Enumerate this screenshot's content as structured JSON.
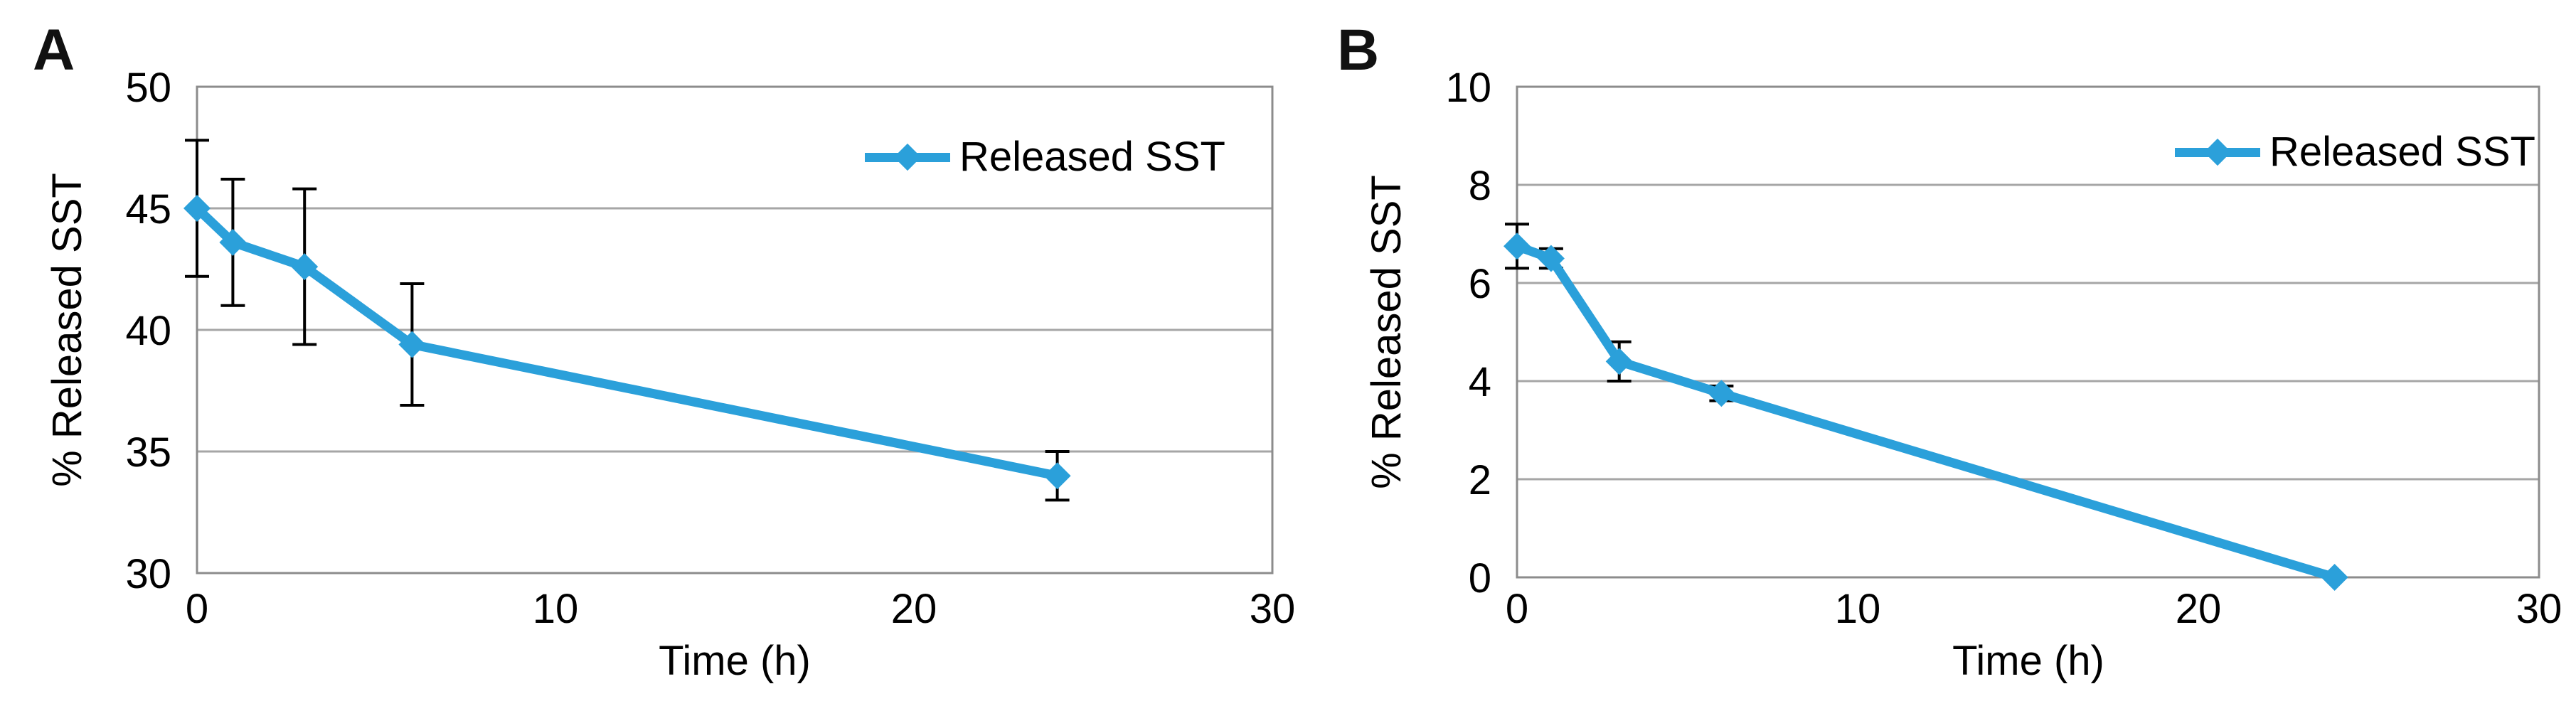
{
  "figure": {
    "background": "#ffffff",
    "series_color": "#2BA0DA",
    "gridline_color": "#A6A6A6",
    "axis_box_color": "#8C8C8C",
    "errorbar_color": "#000000",
    "text_color": "#000000"
  },
  "chart_data": [
    {
      "type": "line",
      "panel_label": "A",
      "xlabel": "Time (h)",
      "ylabel": "% Released SST",
      "legend": {
        "label": "Released SST",
        "position": "inside-top-right"
      },
      "x": [
        0,
        1,
        3,
        6,
        24
      ],
      "series": [
        {
          "name": "Released SST",
          "values": [
            45.0,
            43.6,
            42.6,
            39.4,
            34.0
          ],
          "errors": [
            2.8,
            2.6,
            3.2,
            2.5,
            1.0
          ]
        }
      ],
      "xlim": [
        0,
        30
      ],
      "ylim": [
        30,
        50
      ],
      "xticks": [
        0,
        10,
        20,
        30
      ],
      "yticks": [
        30,
        35,
        40,
        45,
        50
      ],
      "grid": "horizontal",
      "marker": "diamond"
    },
    {
      "type": "line",
      "panel_label": "B",
      "xlabel": "Time (h)",
      "ylabel": "% Released SST",
      "legend": {
        "label": "Released SST",
        "position": "inside-top-right"
      },
      "x": [
        0,
        1,
        3,
        6,
        24
      ],
      "series": [
        {
          "name": "Released SST",
          "values": [
            6.75,
            6.5,
            4.4,
            3.75,
            0.0
          ],
          "errors": [
            0.45,
            0.2,
            0.4,
            0.15,
            0.0
          ]
        }
      ],
      "xlim": [
        0,
        30
      ],
      "ylim": [
        0,
        10
      ],
      "xticks": [
        0,
        10,
        20,
        30
      ],
      "yticks": [
        0,
        2,
        4,
        6,
        8,
        10
      ],
      "grid": "horizontal",
      "marker": "diamond"
    }
  ]
}
